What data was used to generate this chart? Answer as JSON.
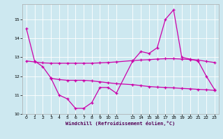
{
  "xlabel": "Windchill (Refroidissement éolien,°C)",
  "background_color": "#cde8f0",
  "line_color": "#cc00aa",
  "ylim": [
    10,
    15.8
  ],
  "xlim": [
    -0.5,
    23.5
  ],
  "yticks": [
    10,
    11,
    12,
    13,
    14,
    15
  ],
  "xticks": [
    0,
    1,
    2,
    3,
    4,
    5,
    6,
    7,
    8,
    9,
    10,
    11,
    13,
    14,
    15,
    16,
    17,
    18,
    19,
    20,
    21,
    22,
    23
  ],
  "xtick_labels": [
    "0",
    "1",
    "2",
    "3",
    "4",
    "5",
    "6",
    "7",
    "8",
    "9",
    "10",
    "11",
    "13",
    "14",
    "15",
    "16",
    "17",
    "18",
    "19",
    "20",
    "21",
    "22",
    "23"
  ],
  "series1_x": [
    0,
    1,
    2,
    3,
    4,
    5,
    6,
    7,
    8,
    9,
    10,
    11,
    13,
    14,
    15,
    16,
    17,
    18,
    19,
    20,
    21,
    22,
    23
  ],
  "series1_y": [
    14.5,
    12.8,
    12.5,
    11.9,
    11.0,
    10.8,
    10.3,
    10.3,
    10.6,
    11.4,
    11.4,
    11.1,
    12.8,
    13.3,
    13.2,
    13.5,
    15.0,
    15.5,
    13.0,
    12.9,
    12.8,
    12.0,
    11.3
  ],
  "series2_x": [
    0,
    1,
    2,
    3,
    4,
    5,
    6,
    7,
    8,
    9,
    10,
    11,
    13,
    14,
    15,
    16,
    17,
    18,
    19,
    20,
    21,
    22,
    23
  ],
  "series2_y": [
    12.8,
    12.75,
    12.7,
    12.68,
    12.68,
    12.68,
    12.68,
    12.68,
    12.68,
    12.7,
    12.72,
    12.75,
    12.82,
    12.85,
    12.87,
    12.9,
    12.92,
    12.92,
    12.9,
    12.88,
    12.85,
    12.78,
    12.72
  ],
  "series3_x": [
    3,
    4,
    5,
    6,
    7,
    8,
    9,
    10,
    11,
    13,
    14,
    15,
    16,
    17,
    18,
    19,
    20,
    21,
    22,
    23
  ],
  "series3_y": [
    11.88,
    11.82,
    11.78,
    11.78,
    11.78,
    11.75,
    11.7,
    11.65,
    11.6,
    11.55,
    11.5,
    11.45,
    11.42,
    11.4,
    11.38,
    11.35,
    11.33,
    11.3,
    11.28,
    11.25
  ]
}
